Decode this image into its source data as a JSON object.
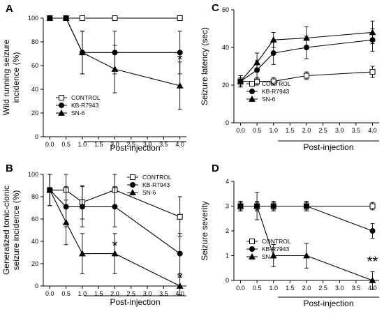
{
  "chart_data": [
    {
      "type": "line",
      "panel": "A",
      "ylabel": "Wild running seizure incidence (%)",
      "ylabel_lines": [
        "Wild running seizure",
        "incidence (%)"
      ],
      "xlabel": "Post-injection",
      "xlim": [
        -0.2,
        4.2
      ],
      "ylim": [
        0,
        100
      ],
      "x": [
        0.0,
        0.5,
        1.0,
        2.0,
        4.0
      ],
      "xticks": [
        "0.0",
        "0.5",
        "1.0",
        "1.5",
        "2.0",
        "2.5",
        "3.0",
        "3.5",
        "4.0"
      ],
      "yticks": [
        "0",
        "20",
        "40",
        "60",
        "80",
        "100"
      ],
      "legend_position": "lower-left",
      "grid": false,
      "series": [
        {
          "name": "CONTROL",
          "marker": "open-square",
          "values": [
            100,
            100,
            100,
            100,
            100
          ],
          "err": [
            0,
            0,
            0,
            0,
            0
          ]
        },
        {
          "name": "KB-R7943",
          "marker": "filled-circle",
          "values": [
            100,
            100,
            71,
            71,
            71
          ],
          "err": [
            0,
            0,
            18,
            18,
            18
          ]
        },
        {
          "name": "SN-6",
          "marker": "filled-triangle",
          "values": [
            100,
            100,
            71,
            57,
            43
          ],
          "err": [
            0,
            0,
            18,
            20,
            20
          ]
        }
      ],
      "annotations": [
        {
          "text": "*",
          "x": 4.0,
          "y": 66
        }
      ]
    },
    {
      "type": "line",
      "panel": "C",
      "ylabel": "Seizure latency (sec)",
      "ylabel_lines": [
        "Seizure latency (sec)"
      ],
      "xlabel": "Post-injection",
      "xlim": [
        -0.2,
        4.2
      ],
      "ylim": [
        0,
        60
      ],
      "x": [
        0.0,
        0.5,
        1.0,
        2.0,
        4.0
      ],
      "xticks": [
        "0.0",
        "0.5",
        "1.0",
        "1.5",
        "2.0",
        "2.5",
        "3.0",
        "3.5",
        "4.0"
      ],
      "yticks": [
        "0",
        "20",
        "40",
        "60"
      ],
      "legend_position": "lower-left",
      "grid": false,
      "series": [
        {
          "name": "CONTROL",
          "marker": "open-square",
          "values": [
            22,
            22,
            22,
            25,
            27
          ],
          "err": [
            2,
            2,
            2,
            2,
            3
          ]
        },
        {
          "name": "KB-R7943",
          "marker": "filled-circle",
          "values": [
            22,
            28,
            37,
            40,
            44
          ],
          "err": [
            3,
            5,
            6,
            6,
            6
          ]
        },
        {
          "name": "SN-6",
          "marker": "filled-triangle",
          "values": [
            22,
            32,
            44,
            45,
            48
          ],
          "err": [
            3,
            5,
            4,
            6,
            6
          ]
        }
      ],
      "annotations": []
    },
    {
      "type": "line",
      "panel": "B",
      "ylabel": "Generalized tonic-clonic seizure incidence (%)",
      "ylabel_lines": [
        "Generalized tonic-clonic",
        "seizure incidence (%)"
      ],
      "xlabel": "Post-injection",
      "xlim": [
        -0.2,
        4.2
      ],
      "ylim": [
        0,
        100
      ],
      "x": [
        0.0,
        0.5,
        1.0,
        2.0,
        4.0
      ],
      "xticks": [
        "0.0",
        "0.5",
        "1.0",
        "1.5",
        "2.0",
        "2.5",
        "3.0",
        "3.5",
        "4.0"
      ],
      "yticks": [
        "0",
        "20",
        "40",
        "60",
        "80",
        "100"
      ],
      "legend_position": "top-right",
      "grid": false,
      "series": [
        {
          "name": "CONTROL",
          "marker": "open-square",
          "values": [
            86,
            86,
            75,
            86,
            62
          ],
          "err": [
            14,
            14,
            15,
            14,
            18
          ]
        },
        {
          "name": "KB-R7943",
          "marker": "filled-circle",
          "values": [
            86,
            71,
            71,
            71,
            29
          ],
          "err": [
            14,
            18,
            18,
            18,
            18
          ]
        },
        {
          "name": "SN-6",
          "marker": "filled-triangle",
          "values": [
            86,
            57,
            29,
            29,
            0
          ],
          "err": [
            14,
            20,
            18,
            18,
            8
          ]
        }
      ],
      "annotations": [
        {
          "text": "*",
          "x": 2.0,
          "y": 37
        },
        {
          "text": "*",
          "x": 4.0,
          "y": 8
        }
      ]
    },
    {
      "type": "line",
      "panel": "D",
      "ylabel": "Seizure severity",
      "ylabel_lines": [
        "Seizure severity"
      ],
      "xlabel": "Post-injection",
      "xlim": [
        -0.2,
        4.2
      ],
      "ylim": [
        0,
        4
      ],
      "x": [
        0.0,
        0.5,
        1.0,
        2.0,
        4.0
      ],
      "xticks": [
        "0.0",
        "0.5",
        "1.0",
        "1.5",
        "2.0",
        "2.5",
        "3.0",
        "3.5",
        "4.0"
      ],
      "yticks": [
        "0",
        "1",
        "2",
        "3",
        "4"
      ],
      "legend_position": "lower-left",
      "grid": false,
      "series": [
        {
          "name": "CONTROL",
          "marker": "open-square",
          "values": [
            3,
            3,
            3,
            3,
            3
          ],
          "err": [
            0.15,
            0.15,
            0.15,
            0.15,
            0.15
          ]
        },
        {
          "name": "KB-R7943",
          "marker": "filled-circle",
          "values": [
            3,
            3,
            3,
            3,
            2
          ],
          "err": [
            0.2,
            0.2,
            0.2,
            0.2,
            0.3
          ]
        },
        {
          "name": "SN-6",
          "marker": "filled-triangle",
          "values": [
            3,
            3,
            1,
            1,
            0
          ],
          "err": [
            0.2,
            0.55,
            0.45,
            0.5,
            0.35
          ]
        }
      ],
      "annotations": [
        {
          "text": "**",
          "x": 4.0,
          "y": 0.8
        }
      ]
    }
  ]
}
